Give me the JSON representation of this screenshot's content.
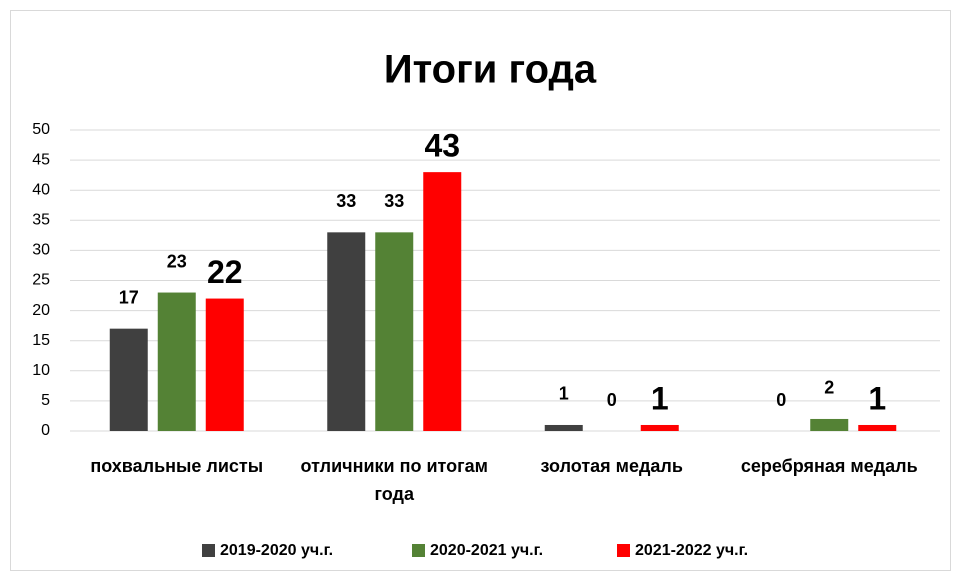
{
  "chart_data": {
    "type": "bar",
    "title": "Итоги года",
    "categories": [
      "похвальные листы",
      "отличники по итогам года",
      "золотая медаль",
      "серебряная медаль"
    ],
    "series": [
      {
        "name": "2019-2020 уч.г.",
        "color": "#404040",
        "values": [
          17,
          33,
          1,
          0
        ]
      },
      {
        "name": "2020-2021 уч.г.",
        "color": "#548235",
        "values": [
          23,
          33,
          0,
          2
        ]
      },
      {
        "name": "2021-2022 уч.г.",
        "color": "#ff0000",
        "values": [
          22,
          43,
          1,
          1
        ]
      }
    ],
    "ylim": [
      0,
      50
    ],
    "yticks": [
      0,
      5,
      10,
      15,
      20,
      25,
      30,
      35,
      40,
      45,
      50
    ],
    "grid": true,
    "legend": "bottom"
  }
}
